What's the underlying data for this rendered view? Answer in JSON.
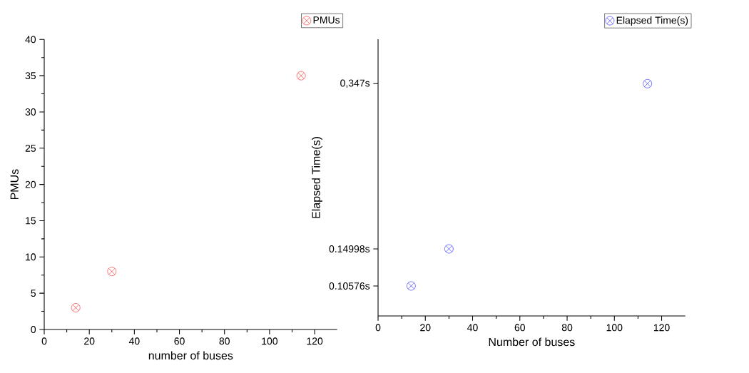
{
  "chart_data": [
    {
      "type": "scatter",
      "xlabel": "number of buses",
      "ylabel": "PMUs",
      "x": [
        14,
        30,
        114
      ],
      "series": [
        {
          "name": "PMUs",
          "color": "#ff0000",
          "values": [
            3,
            8,
            35
          ]
        }
      ],
      "xlim": [
        0,
        130
      ],
      "xticks": [
        0,
        20,
        40,
        60,
        80,
        100,
        120
      ],
      "ylim": [
        0,
        40
      ],
      "yticks": [
        0,
        5,
        10,
        15,
        20,
        25,
        30,
        35,
        40
      ],
      "marker": "cross",
      "legend": "top right"
    },
    {
      "type": "scatter",
      "xlabel": "Number of buses",
      "ylabel": "Elapsed Time(s)",
      "x": [
        14,
        30,
        114
      ],
      "series": [
        {
          "name": "Elapsed Time(s)",
          "color": "#0000ff",
          "values": [
            0.10576,
            0.14998,
            0.347
          ]
        }
      ],
      "xlim": [
        0,
        130
      ],
      "xticks": [
        0,
        20,
        40,
        60,
        80,
        100,
        120
      ],
      "ylim": [
        0.07,
        0.4
      ],
      "yticks": [
        {
          "value": 0.10576,
          "label": "0.10576s"
        },
        {
          "value": 0.14998,
          "label": "0.14998s"
        },
        {
          "value": 0.347,
          "label": "0,347s"
        }
      ],
      "marker": "cross",
      "legend": "top right"
    }
  ]
}
